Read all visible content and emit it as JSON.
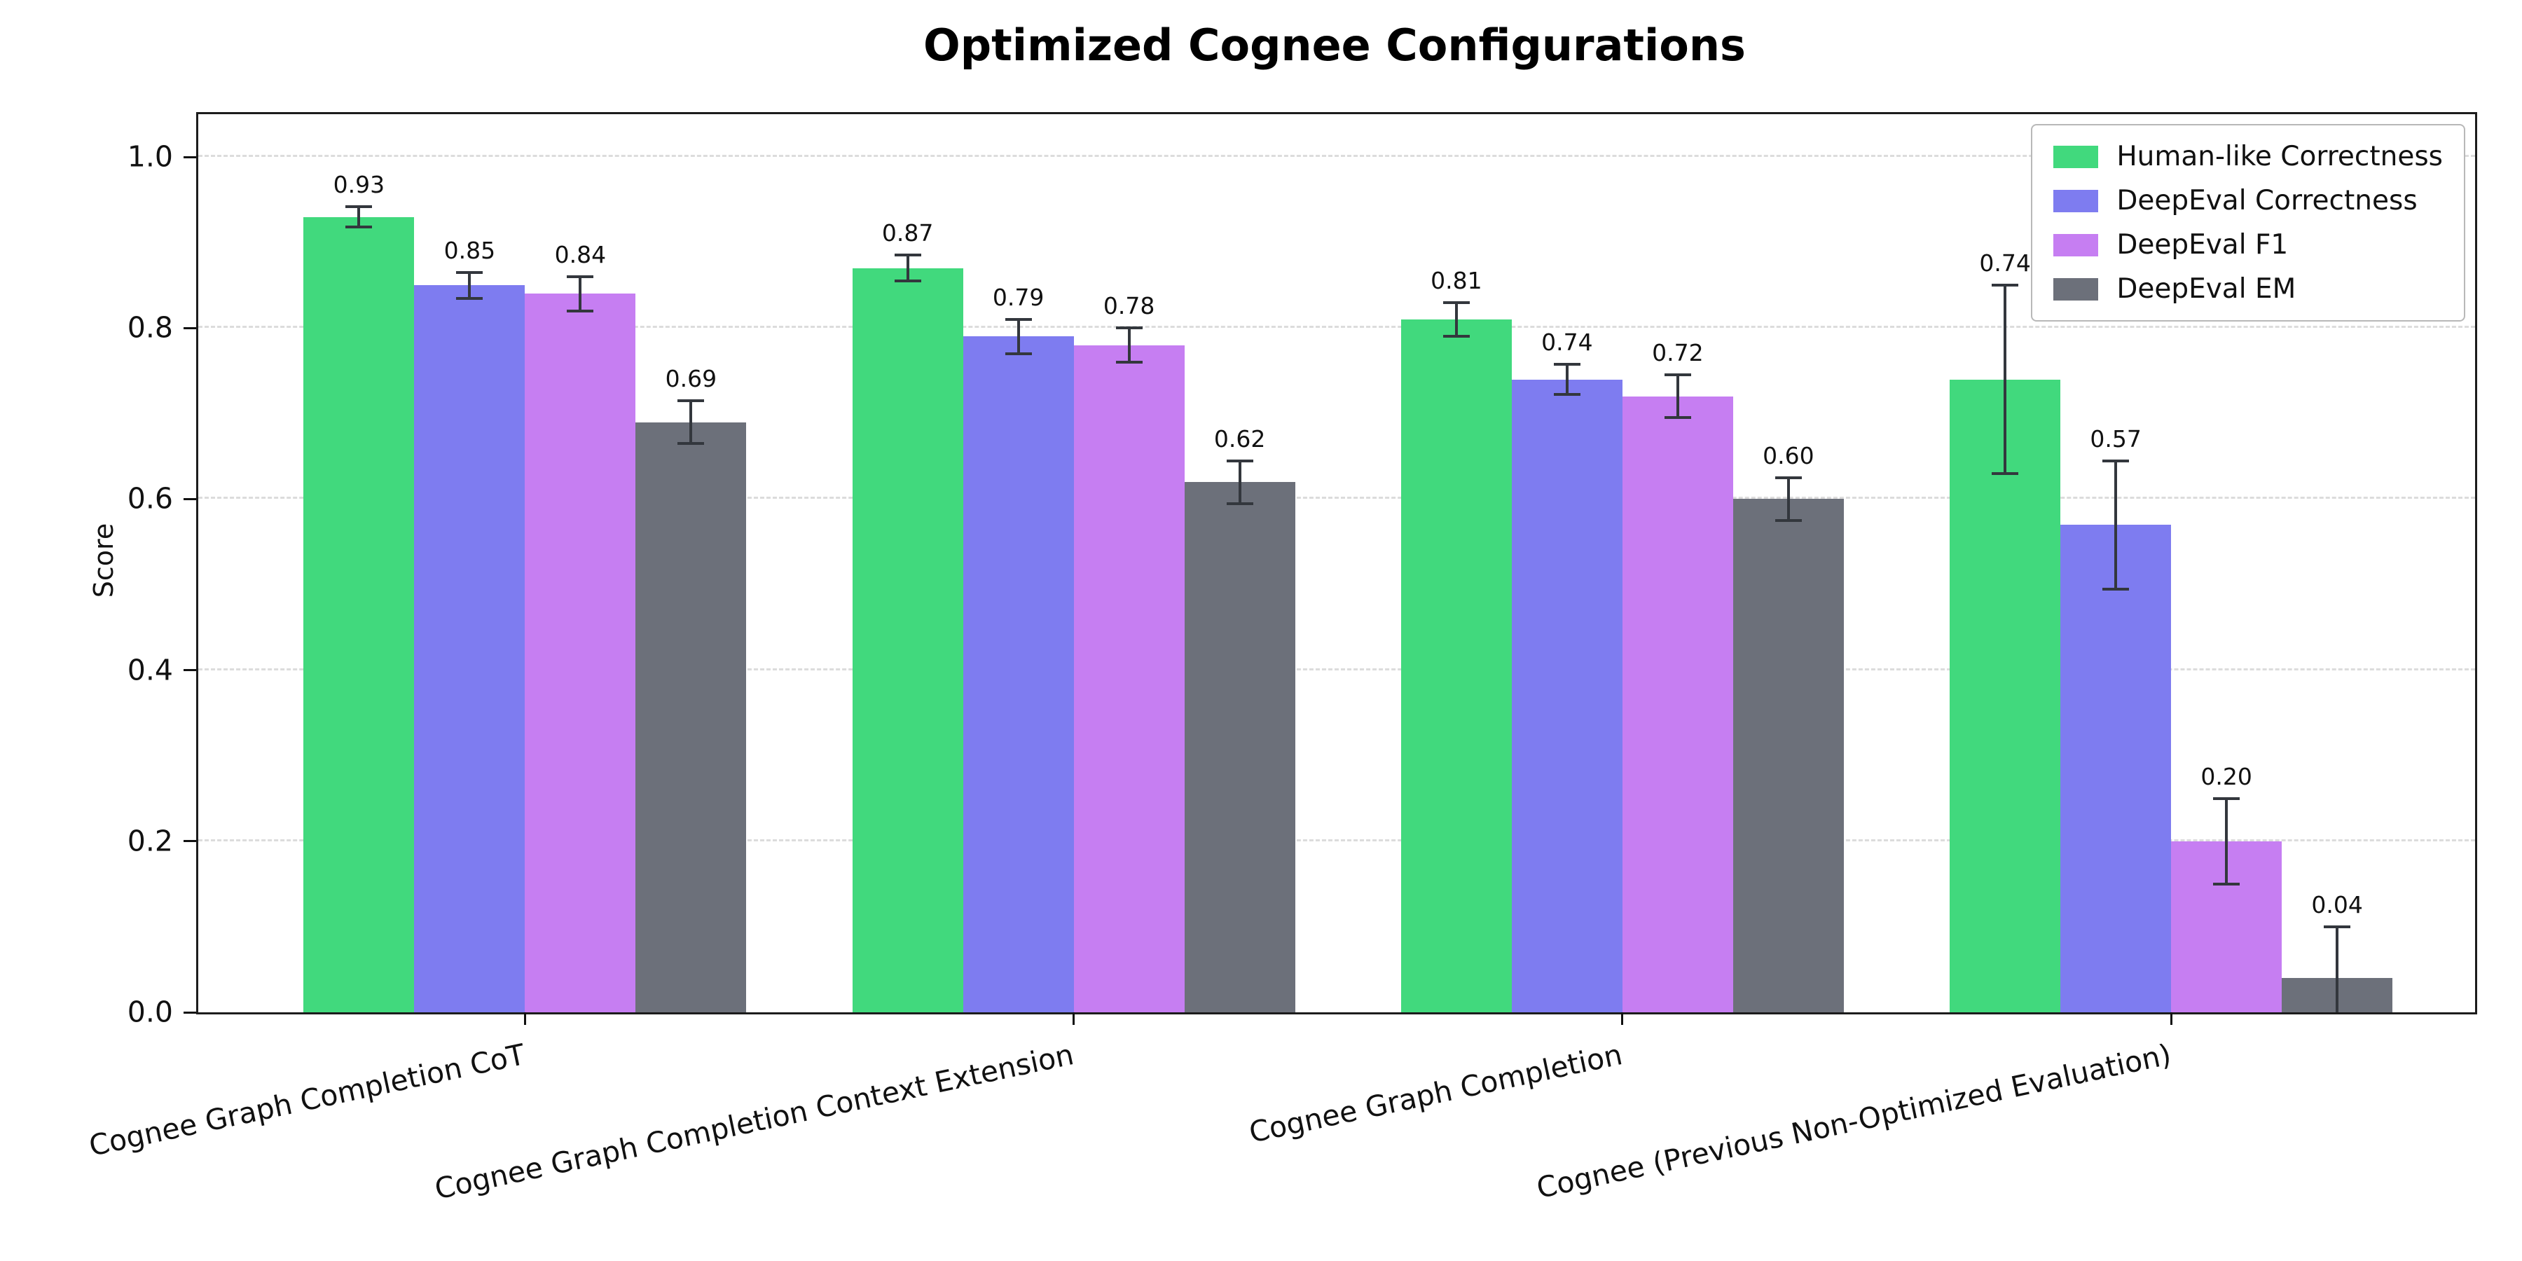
{
  "page": {
    "title": "Optimized Cognee Configurations"
  },
  "chart_data": {
    "type": "bar",
    "title": "Optimized Cognee Configurations",
    "xlabel": "",
    "ylabel": "Score",
    "ylim": [
      0,
      1.05
    ],
    "yticks": [
      0.0,
      0.2,
      0.4,
      0.6,
      0.8,
      1.0
    ],
    "grid": "horizontal dashed gridlines at y ticks",
    "legend_position": "upper right",
    "bar_value_labels": true,
    "error_bars": true,
    "error_bar_color": "#33373d",
    "categories": [
      "Cognee Graph Completion CoT",
      "Cognee Graph Completion Context Extension",
      "Cognee Graph Completion",
      "Cognee (Previous Non-Optimized Evaluation)"
    ],
    "series": [
      {
        "name": "Human-like Correctness",
        "color": "#41d97d",
        "values": [
          0.93,
          0.87,
          0.81,
          0.74
        ],
        "errors": [
          0.012,
          0.015,
          0.02,
          0.11
        ]
      },
      {
        "name": "DeepEval Correctness",
        "color": "#7e7cf0",
        "values": [
          0.85,
          0.79,
          0.74,
          0.57
        ],
        "errors": [
          0.015,
          0.02,
          0.018,
          0.075
        ]
      },
      {
        "name": "DeepEval F1",
        "color": "#c67ef2",
        "values": [
          0.84,
          0.78,
          0.72,
          0.2
        ],
        "errors": [
          0.02,
          0.02,
          0.025,
          0.05
        ]
      },
      {
        "name": "DeepEval EM",
        "color": "#6c707a",
        "values": [
          0.69,
          0.62,
          0.6,
          0.04
        ],
        "errors": [
          0.025,
          0.025,
          0.025,
          0.06
        ]
      }
    ]
  }
}
